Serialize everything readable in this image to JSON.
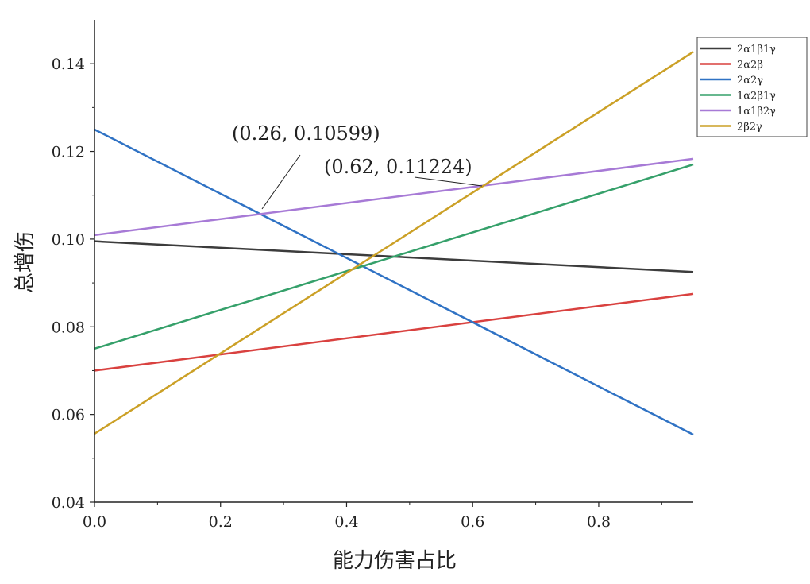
{
  "chart_data": {
    "type": "line",
    "title": "",
    "xlabel": "能力伤害占比",
    "ylabel": "总增伤",
    "xlim": [
      0,
      0.95
    ],
    "ylim": [
      0.04,
      0.15
    ],
    "xticks": [
      "0.0",
      "0.2",
      "0.4",
      "0.6",
      "0.8"
    ],
    "yticks": [
      "0.04",
      "0.06",
      "0.08",
      "0.10",
      "0.12",
      "0.14"
    ],
    "grid": false,
    "legend_position": "right",
    "series": [
      {
        "name": "2α1β1γ",
        "color": "#3c3c3c",
        "x": [
          0,
          0.95
        ],
        "y": [
          0.0995,
          0.0925
        ]
      },
      {
        "name": "2α2β",
        "color": "#d9413f",
        "x": [
          0,
          0.95
        ],
        "y": [
          0.07,
          0.0875
        ]
      },
      {
        "name": "2α2γ",
        "color": "#2f72c4",
        "x": [
          0,
          0.95
        ],
        "y": [
          0.125,
          0.0554
        ]
      },
      {
        "name": "1α2β1γ",
        "color": "#35a06a",
        "x": [
          0,
          0.95
        ],
        "y": [
          0.075,
          0.117
        ]
      },
      {
        "name": "1α1β2γ",
        "color": "#a77ad6",
        "x": [
          0,
          0.95
        ],
        "y": [
          0.1009,
          0.1183
        ]
      },
      {
        "name": "2β2γ",
        "color": "#cba026",
        "x": [
          0,
          0.95
        ],
        "y": [
          0.0556,
          0.1427
        ]
      }
    ],
    "annotations": [
      {
        "text": "(0.26, 0.10599)",
        "x": 0.26,
        "y": 0.10599
      },
      {
        "text": "(0.62, 0.11224)",
        "x": 0.62,
        "y": 0.11224
      }
    ]
  }
}
